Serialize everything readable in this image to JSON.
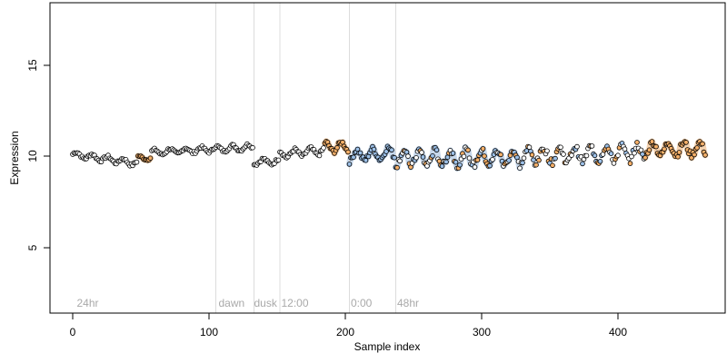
{
  "chart_data": {
    "type": "scatter",
    "title": "",
    "xlabel": "Sample index",
    "ylabel": "Expression",
    "xlim": [
      -15,
      480
    ],
    "ylim": [
      1.5,
      18.5
    ],
    "x_ticks": [
      0,
      100,
      200,
      300,
      400
    ],
    "y_ticks": [
      5,
      10,
      15
    ],
    "grid": false,
    "vertical_lines": [
      105,
      133,
      152,
      203,
      237
    ],
    "annotations": [
      {
        "x": 3,
        "text": "24hr"
      },
      {
        "x": 107,
        "text": "dawn"
      },
      {
        "x": 133,
        "text": "dusk"
      },
      {
        "x": 153,
        "text": "12:00"
      },
      {
        "x": 204,
        "text": "0:00"
      },
      {
        "x": 238,
        "text": "48hr"
      }
    ],
    "colors": {
      "point_stroke": "#000000",
      "point_fill_default": "#ffffff",
      "point_fill_orange": "#f5b069",
      "point_fill_blue": "#9cc0e8",
      "band_orange": "#f3c79b",
      "band_blue": "#b8cde6",
      "vline": "#dcdcdc",
      "annotation_text": "#a9a9a9"
    },
    "series": [
      {
        "segments": [
          {
            "x_start": 0,
            "x_end": 48,
            "level": 10.1,
            "drift": -0.5,
            "noise": 0.15,
            "fill": "white"
          },
          {
            "x_start": 48,
            "x_end": 58,
            "level": 9.9,
            "drift": 0.0,
            "noise": 0.1,
            "fill": "orange",
            "band": "orange"
          },
          {
            "x_start": 58,
            "x_end": 133,
            "level": 10.2,
            "drift": 0.3,
            "noise": 0.15,
            "fill": "white"
          },
          {
            "x_start": 133,
            "x_end": 152,
            "level": 9.7,
            "drift": 0.0,
            "noise": 0.15,
            "fill": "white"
          },
          {
            "x_start": 152,
            "x_end": 185,
            "level": 10.1,
            "drift": 0.2,
            "noise": 0.2,
            "fill": "white"
          },
          {
            "x_start": 185,
            "x_end": 203,
            "level": 10.5,
            "drift": 0.0,
            "noise": 0.25,
            "fill": "orange",
            "band": "orange"
          },
          {
            "x_start": 203,
            "x_end": 237,
            "level": 10.0,
            "drift": 0.2,
            "noise": 0.3,
            "fill": "blue",
            "band": "blue"
          },
          {
            "x_start": 237,
            "x_end": 330,
            "level": 9.9,
            "drift": 0.0,
            "noise": 0.4,
            "fill": "mixed",
            "band": "blue"
          },
          {
            "x_start": 330,
            "x_end": 420,
            "level": 10.0,
            "drift": 0.2,
            "noise": 0.4,
            "fill": "mixed"
          },
          {
            "x_start": 420,
            "x_end": 465,
            "level": 10.4,
            "drift": 0.0,
            "noise": 0.35,
            "fill": "orange",
            "band": "orange"
          }
        ]
      }
    ]
  },
  "labels": {
    "x_tick_0": "0",
    "x_tick_1": "100",
    "x_tick_2": "200",
    "x_tick_3": "300",
    "x_tick_4": "400",
    "y_tick_0": "5",
    "y_tick_1": "10",
    "y_tick_2": "15"
  }
}
